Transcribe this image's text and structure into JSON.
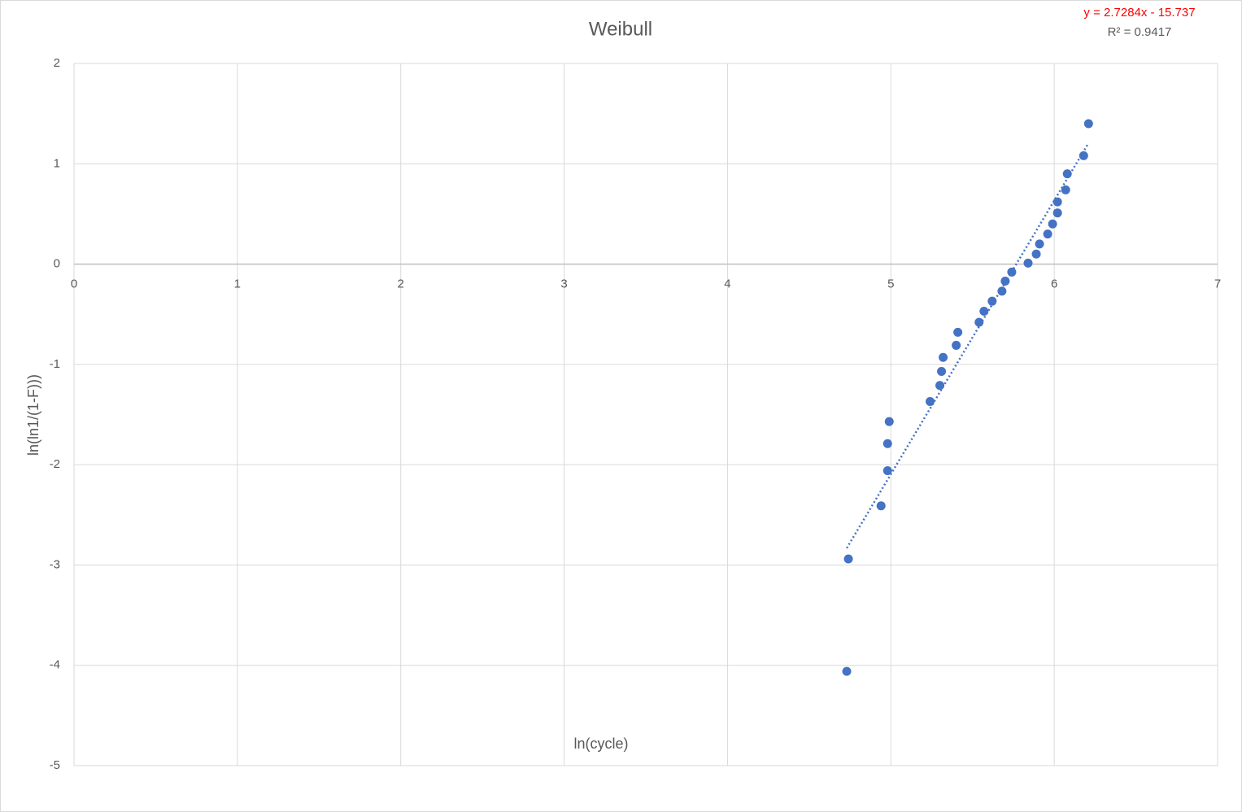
{
  "chart_data": {
    "type": "scatter",
    "title": "Weibull",
    "x_label": "ln(cycle)",
    "y_label": "ln(ln1/(1-F)))",
    "xlim": [
      0,
      7
    ],
    "ylim": [
      -5,
      2
    ],
    "xticks": [
      0,
      1,
      2,
      3,
      4,
      5,
      6,
      7
    ],
    "yticks": [
      -5,
      -4,
      -3,
      -2,
      -1,
      0,
      1,
      2
    ],
    "grid": true,
    "series": [
      {
        "color": "#4472c4",
        "x": [
          4.74,
          4.73,
          4.94,
          4.98,
          4.98,
          4.99,
          5.24,
          5.3,
          5.31,
          5.32,
          5.4,
          5.41,
          5.54,
          5.57,
          5.62,
          5.68,
          5.7,
          5.74,
          5.84,
          5.89,
          5.91,
          5.96,
          5.99,
          6.02,
          6.02,
          6.07,
          6.08,
          6.18,
          6.21
        ],
        "values": [
          -2.94,
          -4.06,
          -2.41,
          -2.06,
          -1.79,
          -1.57,
          -1.37,
          -1.21,
          -1.07,
          -0.93,
          -0.81,
          -0.68,
          -0.58,
          -0.47,
          -0.37,
          -0.27,
          -0.17,
          -0.08,
          0.01,
          0.1,
          0.2,
          0.3,
          0.4,
          0.51,
          0.62,
          0.74,
          0.9,
          1.08,
          1.4
        ]
      }
    ],
    "trendline": {
      "slope": 2.7284,
      "intercept": -15.737,
      "equation": "y = 2.7284x - 15.737",
      "r_squared": "R² = 0.9417",
      "equation_color": "#ff0000"
    }
  }
}
